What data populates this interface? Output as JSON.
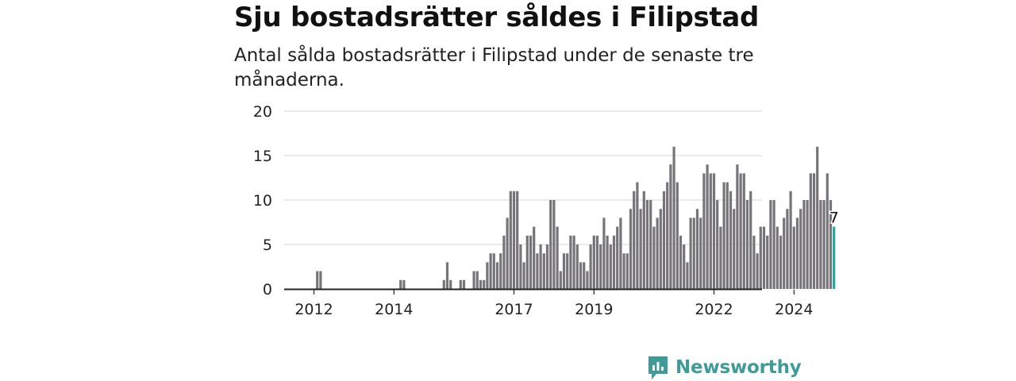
{
  "title": "Sju bostadsrätter såldes i Filipstad",
  "subtitle": "Antal sålda bostadsrätter i Filipstad under de senaste tre månaderna.",
  "brand": {
    "name": "Newsworthy",
    "icon": "newsworthy-logo-icon",
    "color": "#3f9b97"
  },
  "colors": {
    "bar": "#767479",
    "highlight": "#23a89f",
    "grid": "#dddddd",
    "axis": "#222222"
  },
  "chart_data": {
    "type": "bar",
    "title": "",
    "xlabel": "",
    "ylabel": "",
    "ylim": [
      0,
      20
    ],
    "y_ticks": [
      0,
      5,
      10,
      15,
      20
    ],
    "x_tick_labels": [
      {
        "label": "2012",
        "date": "2012-01"
      },
      {
        "label": "2014",
        "date": "2014-01"
      },
      {
        "label": "2017",
        "date": "2017-01"
      },
      {
        "label": "2019",
        "date": "2019-01"
      },
      {
        "label": "2022",
        "date": "2022-01"
      },
      {
        "label": "2024",
        "date": "2024-01"
      }
    ],
    "grid": true,
    "start_month": "2011-08",
    "end_month": "2025-01",
    "nonzero_months": [
      {
        "month": "2012-02",
        "value": 2
      },
      {
        "month": "2012-03",
        "value": 2
      },
      {
        "month": "2014-03",
        "value": 1
      },
      {
        "month": "2014-04",
        "value": 1
      },
      {
        "month": "2015-04",
        "value": 1
      },
      {
        "month": "2015-05",
        "value": 3
      },
      {
        "month": "2015-06",
        "value": 1
      },
      {
        "month": "2015-09",
        "value": 1
      },
      {
        "month": "2015-10",
        "value": 1
      },
      {
        "month": "2016-01",
        "value": 2
      },
      {
        "month": "2016-02",
        "value": 2
      },
      {
        "month": "2016-03",
        "value": 1
      },
      {
        "month": "2016-04",
        "value": 1
      },
      {
        "month": "2016-05",
        "value": 3
      },
      {
        "month": "2016-06",
        "value": 4
      },
      {
        "month": "2016-07",
        "value": 4
      },
      {
        "month": "2016-08",
        "value": 3
      },
      {
        "month": "2016-09",
        "value": 4
      },
      {
        "month": "2016-10",
        "value": 6
      },
      {
        "month": "2016-11",
        "value": 8
      },
      {
        "month": "2016-12",
        "value": 11
      },
      {
        "month": "2017-01",
        "value": 11
      },
      {
        "month": "2017-02",
        "value": 11
      },
      {
        "month": "2017-03",
        "value": 5
      },
      {
        "month": "2017-04",
        "value": 3
      },
      {
        "month": "2017-05",
        "value": 6
      },
      {
        "month": "2017-06",
        "value": 6
      },
      {
        "month": "2017-07",
        "value": 7
      },
      {
        "month": "2017-08",
        "value": 4
      },
      {
        "month": "2017-09",
        "value": 5
      },
      {
        "month": "2017-10",
        "value": 4
      },
      {
        "month": "2017-11",
        "value": 5
      },
      {
        "month": "2017-12",
        "value": 10
      },
      {
        "month": "2018-01",
        "value": 10
      },
      {
        "month": "2018-02",
        "value": 7
      },
      {
        "month": "2018-03",
        "value": 2
      },
      {
        "month": "2018-04",
        "value": 4
      },
      {
        "month": "2018-05",
        "value": 4
      },
      {
        "month": "2018-06",
        "value": 6
      },
      {
        "month": "2018-07",
        "value": 6
      },
      {
        "month": "2018-08",
        "value": 5
      },
      {
        "month": "2018-09",
        "value": 3
      },
      {
        "month": "2018-10",
        "value": 3
      },
      {
        "month": "2018-11",
        "value": 2
      },
      {
        "month": "2018-12",
        "value": 5
      },
      {
        "month": "2019-01",
        "value": 6
      },
      {
        "month": "2019-02",
        "value": 6
      },
      {
        "month": "2019-03",
        "value": 5
      },
      {
        "month": "2019-04",
        "value": 8
      },
      {
        "month": "2019-05",
        "value": 6
      },
      {
        "month": "2019-06",
        "value": 5
      },
      {
        "month": "2019-07",
        "value": 6
      },
      {
        "month": "2019-08",
        "value": 7
      },
      {
        "month": "2019-09",
        "value": 8
      },
      {
        "month": "2019-10",
        "value": 4
      },
      {
        "month": "2019-11",
        "value": 4
      },
      {
        "month": "2019-12",
        "value": 9
      },
      {
        "month": "2020-01",
        "value": 11
      },
      {
        "month": "2020-02",
        "value": 12
      },
      {
        "month": "2020-03",
        "value": 9
      },
      {
        "month": "2020-04",
        "value": 11
      },
      {
        "month": "2020-05",
        "value": 10
      },
      {
        "month": "2020-06",
        "value": 10
      },
      {
        "month": "2020-07",
        "value": 7
      },
      {
        "month": "2020-08",
        "value": 8
      },
      {
        "month": "2020-09",
        "value": 9
      },
      {
        "month": "2020-10",
        "value": 11
      },
      {
        "month": "2020-11",
        "value": 12
      },
      {
        "month": "2020-12",
        "value": 14
      },
      {
        "month": "2021-01",
        "value": 16
      },
      {
        "month": "2021-02",
        "value": 12
      },
      {
        "month": "2021-03",
        "value": 6
      },
      {
        "month": "2021-04",
        "value": 5
      },
      {
        "month": "2021-05",
        "value": 3
      },
      {
        "month": "2021-06",
        "value": 8
      },
      {
        "month": "2021-07",
        "value": 8
      },
      {
        "month": "2021-08",
        "value": 9
      },
      {
        "month": "2021-09",
        "value": 8
      },
      {
        "month": "2021-10",
        "value": 13
      },
      {
        "month": "2021-11",
        "value": 14
      },
      {
        "month": "2021-12",
        "value": 13
      },
      {
        "month": "2022-01",
        "value": 13
      },
      {
        "month": "2022-02",
        "value": 10
      },
      {
        "month": "2022-03",
        "value": 7
      },
      {
        "month": "2022-04",
        "value": 12
      },
      {
        "month": "2022-05",
        "value": 12
      },
      {
        "month": "2022-06",
        "value": 11
      },
      {
        "month": "2022-07",
        "value": 9
      },
      {
        "month": "2022-08",
        "value": 14
      },
      {
        "month": "2022-09",
        "value": 13
      },
      {
        "month": "2022-10",
        "value": 13
      },
      {
        "month": "2022-11",
        "value": 10
      },
      {
        "month": "2022-12",
        "value": 11
      },
      {
        "month": "2023-01",
        "value": 6
      },
      {
        "month": "2023-02",
        "value": 4
      },
      {
        "month": "2023-03",
        "value": 7
      },
      {
        "month": "2023-04",
        "value": 7
      },
      {
        "month": "2023-05",
        "value": 6
      },
      {
        "month": "2023-06",
        "value": 10
      },
      {
        "month": "2023-07",
        "value": 10
      },
      {
        "month": "2023-08",
        "value": 7
      },
      {
        "month": "2023-09",
        "value": 6
      },
      {
        "month": "2023-10",
        "value": 8
      },
      {
        "month": "2023-11",
        "value": 9
      },
      {
        "month": "2023-12",
        "value": 11
      },
      {
        "month": "2024-01",
        "value": 7
      },
      {
        "month": "2024-02",
        "value": 8
      },
      {
        "month": "2024-03",
        "value": 9
      },
      {
        "month": "2024-04",
        "value": 10
      },
      {
        "month": "2024-05",
        "value": 10
      },
      {
        "month": "2024-06",
        "value": 13
      },
      {
        "month": "2024-07",
        "value": 13
      },
      {
        "month": "2024-08",
        "value": 16
      },
      {
        "month": "2024-09",
        "value": 10
      },
      {
        "month": "2024-10",
        "value": 10
      },
      {
        "month": "2024-11",
        "value": 13
      },
      {
        "month": "2024-12",
        "value": 10
      },
      {
        "month": "2025-01",
        "value": 7
      }
    ],
    "highlight": {
      "month": "2025-01",
      "value": 7,
      "label": "7"
    }
  }
}
